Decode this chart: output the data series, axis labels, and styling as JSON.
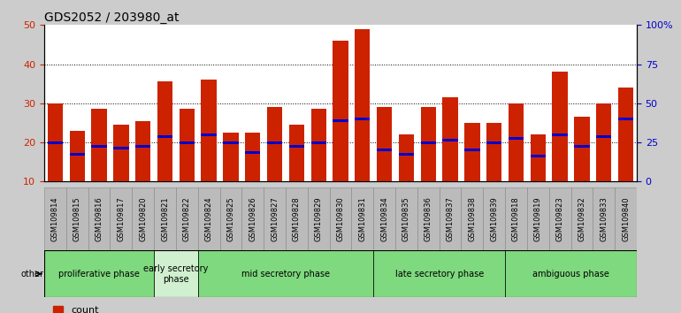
{
  "title": "GDS2052 / 203980_at",
  "samples": [
    "GSM109814",
    "GSM109815",
    "GSM109816",
    "GSM109817",
    "GSM109820",
    "GSM109821",
    "GSM109822",
    "GSM109824",
    "GSM109825",
    "GSM109826",
    "GSM109827",
    "GSM109828",
    "GSM109829",
    "GSM109830",
    "GSM109831",
    "GSM109834",
    "GSM109835",
    "GSM109836",
    "GSM109837",
    "GSM109838",
    "GSM109839",
    "GSM109818",
    "GSM109819",
    "GSM109823",
    "GSM109832",
    "GSM109833",
    "GSM109840"
  ],
  "count_values": [
    30,
    23,
    28.5,
    24.5,
    25.5,
    35.5,
    28.5,
    36,
    22.5,
    22.5,
    29,
    24.5,
    28.5,
    46,
    49,
    29,
    22,
    29,
    31.5,
    25,
    25,
    30,
    22,
    38,
    26.5,
    30,
    34
  ],
  "percentile_values": [
    20,
    17,
    19,
    18.5,
    19,
    21.5,
    20,
    22,
    20,
    17.5,
    20,
    19,
    20,
    25.5,
    26,
    18,
    17,
    20,
    20.5,
    18,
    20,
    21,
    16.5,
    22,
    19,
    21.5,
    26
  ],
  "phases": [
    {
      "label": "proliferative phase",
      "start": 0,
      "end": 5,
      "color": "#7FD97F"
    },
    {
      "label": "early secretory\nphase",
      "start": 5,
      "end": 7,
      "color": "#d0f0d0"
    },
    {
      "label": "mid secretory phase",
      "start": 7,
      "end": 15,
      "color": "#7FD97F"
    },
    {
      "label": "late secretory phase",
      "start": 15,
      "end": 21,
      "color": "#7FD97F"
    },
    {
      "label": "ambiguous phase",
      "start": 21,
      "end": 27,
      "color": "#7FD97F"
    }
  ],
  "ylim_left": [
    10,
    50
  ],
  "ylim_right": [
    0,
    100
  ],
  "yticks_left": [
    10,
    20,
    30,
    40,
    50
  ],
  "yticks_right": [
    0,
    25,
    50,
    75,
    100
  ],
  "ytick_labels_right": [
    "0",
    "25",
    "50",
    "75",
    "100%"
  ],
  "bar_color": "#cc2200",
  "percentile_color": "#0000cc",
  "bg_color": "#cccccc",
  "plot_bg": "#ffffff",
  "left_tick_color": "#cc2200",
  "right_tick_color": "#0000cc",
  "title_fontsize": 10,
  "tick_label_fontsize": 6,
  "phase_label_fontsize": 7,
  "legend_fontsize": 8
}
